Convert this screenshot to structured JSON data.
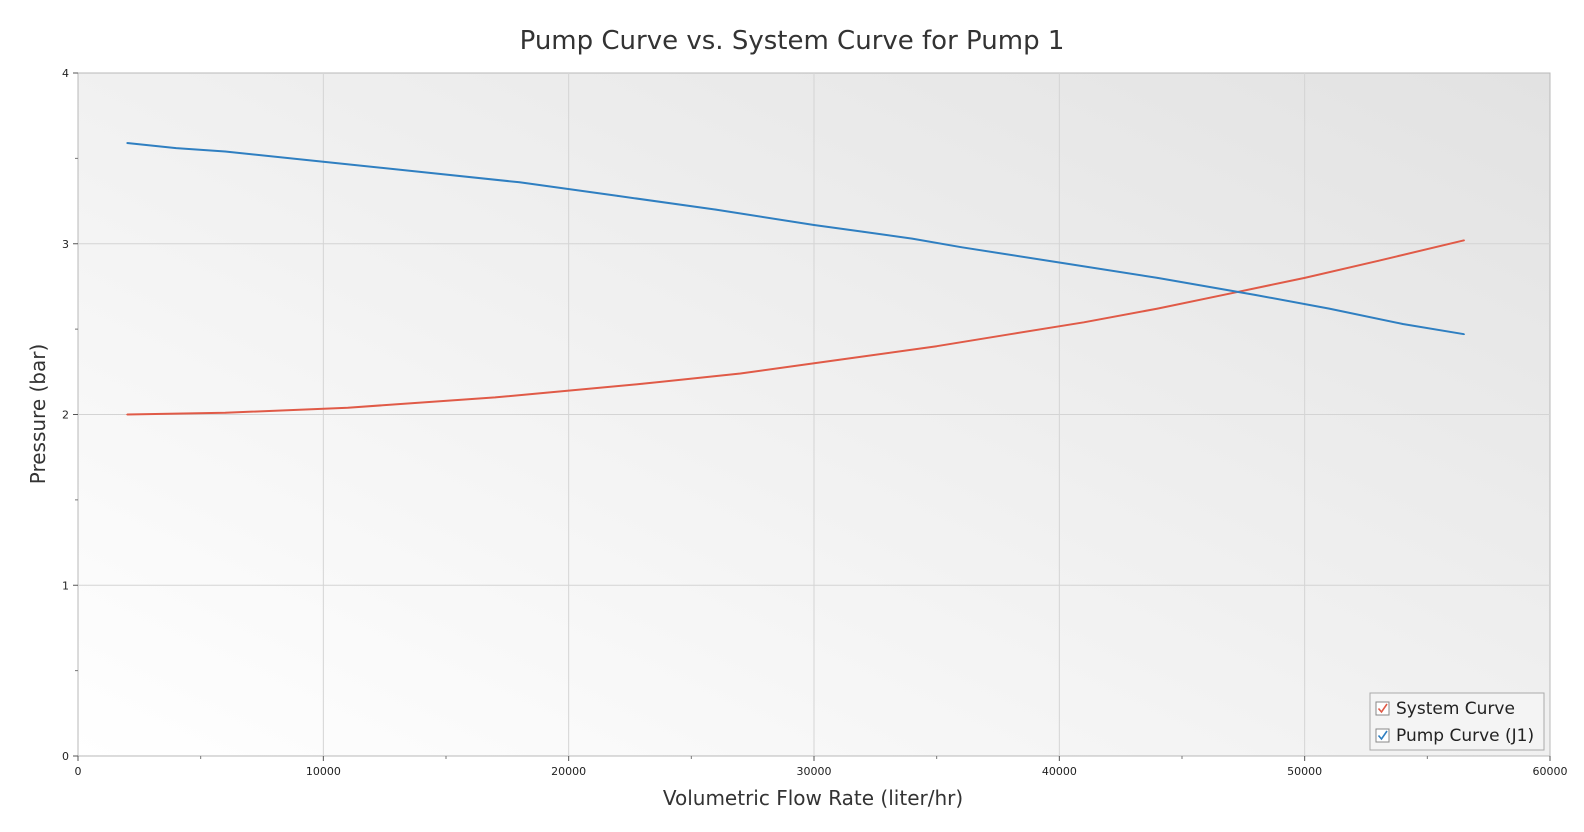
{
  "chart_data": {
    "type": "line",
    "title": "Pump Curve vs. System Curve for Pump 1",
    "xlabel": "Volumetric Flow Rate (liter/hr)",
    "ylabel": "Pressure (bar)",
    "xlim": [
      0,
      60000
    ],
    "ylim": [
      0,
      4
    ],
    "x_ticks": [
      0,
      10000,
      20000,
      30000,
      40000,
      50000,
      60000
    ],
    "x_tick_labels": [
      "0",
      "10000",
      "20000",
      "30000",
      "40000",
      "50000",
      "60000"
    ],
    "y_ticks": [
      0,
      1,
      2,
      3,
      4
    ],
    "y_tick_labels": [
      "0",
      "1",
      "2",
      "3",
      "4"
    ],
    "grid": true,
    "legend_position": "bottom-right",
    "series": [
      {
        "name": "System Curve",
        "color": "#e05a47",
        "x": [
          2000,
          6000,
          11000,
          17000,
          20000,
          23000,
          27000,
          31000,
          35000,
          38000,
          41000,
          44000,
          47000,
          50000,
          53000,
          56500
        ],
        "y": [
          2.0,
          2.01,
          2.04,
          2.1,
          2.14,
          2.18,
          2.24,
          2.32,
          2.4,
          2.47,
          2.54,
          2.62,
          2.71,
          2.8,
          2.9,
          3.02
        ]
      },
      {
        "name": "Pump Curve (J1)",
        "color": "#2f7fc1",
        "x": [
          2000,
          4000,
          6000,
          10000,
          14000,
          18000,
          22000,
          26000,
          30000,
          32000,
          34000,
          36000,
          40000,
          44000,
          48000,
          51000,
          54000,
          56500
        ],
        "y": [
          3.59,
          3.56,
          3.54,
          3.48,
          3.42,
          3.36,
          3.28,
          3.2,
          3.11,
          3.07,
          3.03,
          2.98,
          2.89,
          2.8,
          2.7,
          2.62,
          2.53,
          2.47
        ]
      }
    ]
  }
}
